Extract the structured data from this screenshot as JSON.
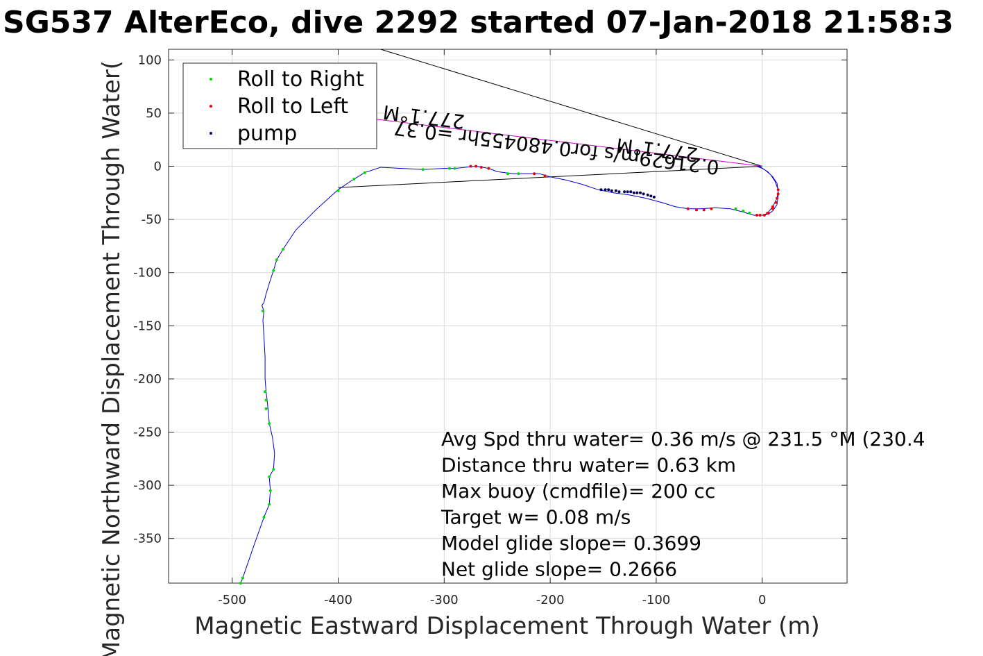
{
  "chart_data": {
    "type": "line",
    "title": "SG537 AlterEco, dive 2292 started 07-Jan-2018 21:58:3",
    "xlabel": "Magnetic Eastward Displacement Through Water (m)",
    "ylabel": "Magnetic Northward Displacement Through Water(",
    "xlim": [
      -560,
      80
    ],
    "ylim": [
      -392,
      110
    ],
    "xticks": [
      "-500",
      "-400",
      "-300",
      "-200",
      "-100",
      "0"
    ],
    "xtick_values": [
      -500,
      -400,
      -300,
      -200,
      -100,
      0
    ],
    "yticks": [
      "100",
      "50",
      "0",
      "-50",
      "-100",
      "-150",
      "-200",
      "-250",
      "-300",
      "-350"
    ],
    "ytick_values": [
      100,
      50,
      0,
      -50,
      -100,
      -150,
      -200,
      -250,
      -300,
      -350
    ],
    "grid": true,
    "legend_placement": "top-left",
    "legend": [
      {
        "label": "Roll to Right",
        "color": "#00dd00"
      },
      {
        "label": "Roll to Left",
        "color": "#ee0000"
      },
      {
        "label": "pump",
        "color": "#000055"
      }
    ],
    "track": {
      "name": "track",
      "color": "#0000cc",
      "x": [
        -492,
        -490,
        -480,
        -470,
        -465,
        -464,
        -465,
        -461,
        -460,
        -462,
        -465,
        -466,
        -467,
        -468,
        -469,
        -469,
        -470,
        -471,
        -470,
        -472,
        -470,
        -468,
        -465,
        -461,
        -458,
        -452,
        -440,
        -420,
        -400,
        -385,
        -375,
        -360,
        -340,
        -320,
        -300,
        -290,
        -280,
        -270,
        -258,
        -250,
        -235,
        -220,
        -210,
        -200,
        -185,
        -170,
        -155,
        -140,
        -125,
        -110,
        -95,
        -82,
        -70,
        -58,
        -45,
        -30,
        -18,
        -8,
        0,
        6,
        10,
        14,
        15,
        15,
        12,
        8,
        2,
        -3,
        -5,
        0,
        5,
        10,
        14,
        15,
        14,
        10,
        5,
        1,
        0
      ],
      "y": [
        -392,
        -387,
        -358,
        -330,
        -318,
        -305,
        -292,
        -285,
        -270,
        -255,
        -242,
        -230,
        -220,
        -212,
        -200,
        -180,
        -160,
        -145,
        -136,
        -131,
        -128,
        -120,
        -110,
        -98,
        -88,
        -78,
        -60,
        -40,
        -22,
        -12,
        -6,
        -1,
        -2,
        -3,
        -2,
        -2,
        -1,
        0,
        -2,
        -5,
        -7,
        -7,
        -7,
        -10,
        -13,
        -17,
        -22,
        -25,
        -27,
        -30,
        -34,
        -38,
        -40,
        -40,
        -39,
        -40,
        -43,
        -46,
        -46,
        -45,
        -42,
        -36,
        -28,
        -22,
        -14,
        -8,
        -3,
        0,
        0,
        -2,
        -5,
        -10,
        -16,
        -24,
        -30,
        -38,
        -44,
        -46,
        -46
      ]
    },
    "roll_right": {
      "x": [
        -492,
        -490,
        -470,
        -465,
        -464,
        -465,
        -461,
        -468,
        -468,
        -469,
        -465,
        -461,
        -458,
        -452,
        -471,
        -400,
        -385,
        -375,
        -320,
        -295,
        -290,
        -240,
        -230,
        -25,
        -18,
        -12
      ],
      "y": [
        -392,
        -387,
        -330,
        -318,
        -305,
        -292,
        -285,
        -220,
        -228,
        -212,
        -242,
        -98,
        -88,
        -78,
        -136,
        -23,
        -12,
        -6,
        -3,
        -2,
        -2,
        -7,
        -7,
        -40,
        -42,
        -44
      ]
    },
    "roll_left": {
      "x": [
        -275,
        -270,
        -265,
        -258,
        -215,
        -205,
        -70,
        -62,
        -55,
        -48,
        -5,
        -2,
        2,
        6,
        10,
        13,
        15,
        15,
        14,
        10,
        5
      ],
      "y": [
        0,
        0,
        -1,
        -2,
        -7,
        -9,
        -40,
        -41,
        -41,
        -40,
        -46,
        -46,
        -46,
        -44,
        -40,
        -34,
        -26,
        -22,
        -30,
        -38,
        -44
      ]
    },
    "pump": {
      "x": [
        -152,
        -148,
        -145,
        -142,
        -138,
        -135,
        -130,
        -127,
        -124,
        -121,
        -118,
        -115,
        -112,
        -108,
        -105,
        -102
      ],
      "y": [
        -22,
        -22,
        -22,
        -23,
        -23,
        -24,
        -24,
        -24,
        -24,
        -25,
        -25,
        -25,
        -26,
        -27,
        -28,
        -29
      ]
    },
    "lines": [
      {
        "color": "#000000",
        "x1": 0,
        "y1": 0,
        "x2": -360,
        "y2": 110
      },
      {
        "color": "#000000",
        "x1": 0,
        "y1": 0,
        "x2": -400,
        "y2": -20
      },
      {
        "color": "#cc00cc",
        "x1": 0,
        "y1": 0,
        "x2": -370,
        "y2": 45
      }
    ],
    "vector_labels": [
      {
        "text": "277.1°M",
        "x": -60,
        "y": 17,
        "rotation": 187
      },
      {
        "text": "0.21629m/s for0.480455hr =0.37",
        "x": -40,
        "y": 5,
        "rotation": 187
      },
      {
        "text": "277.1°M",
        "x": -280,
        "y": 48,
        "rotation": 187
      }
    ],
    "annotations": [
      "Avg Spd thru water=  0.36 m/s @ 231.5 °M (230.4",
      "Distance thru water=  0.63 km",
      "Max buoy (cmdfile)= 200 cc",
      "Target w= 0.08 m/s",
      "Model glide slope= 0.3699",
      "Net glide slope= 0.2666"
    ]
  }
}
